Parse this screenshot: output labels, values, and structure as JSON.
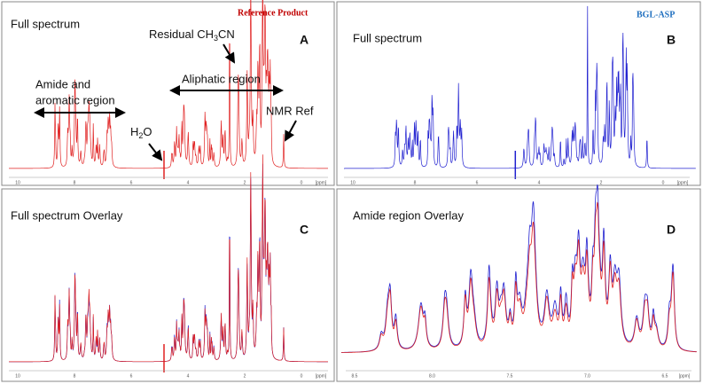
{
  "panels": [
    {
      "letter": "A",
      "title": "Full spectrum",
      "sample": "Reference Product",
      "annotations": {
        "solvent": [
          "Residual CH",
          "3",
          "CN"
        ],
        "amide": [
          "Amide and",
          "aromatic region"
        ],
        "aliphatic": "Aliphatic region",
        "water": [
          "H",
          "2",
          "O"
        ],
        "reference": "NMR Ref"
      },
      "ticks": [
        "10",
        "8",
        "6",
        "4",
        "2",
        "0",
        "[ppm]"
      ]
    },
    {
      "letter": "B",
      "title": "Full spectrum",
      "sample": "BGL-ASP",
      "ticks": [
        "10",
        "8",
        "6",
        "4",
        "2",
        "0",
        "[ppm]"
      ]
    },
    {
      "letter": "C",
      "title": "Full spectrum Overlay",
      "ticks": [
        "10",
        "8",
        "6",
        "4",
        "2",
        "0",
        "[ppm]"
      ]
    },
    {
      "letter": "D",
      "title": "Amide region Overlay",
      "ticks": [
        "8.5",
        "8.0",
        "7.5",
        "7.0",
        "6.5",
        "[ppm]"
      ]
    }
  ]
}
